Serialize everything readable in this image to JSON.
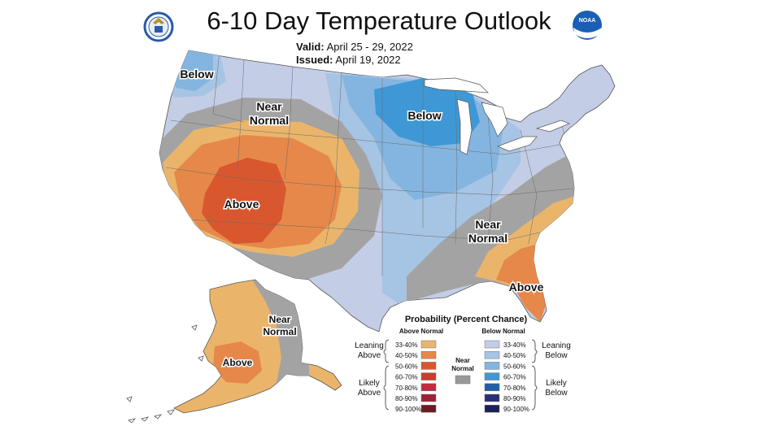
{
  "title": "6-10 Day Temperature Outlook",
  "valid": {
    "label": "Valid:",
    "value": "April 25 - 29, 2022"
  },
  "issued": {
    "label": "Issued:",
    "value": "April 19, 2022"
  },
  "logos": {
    "left": "doc-seal",
    "right": "noaa-logo",
    "right_text": "NOAA"
  },
  "map_labels": {
    "pnw_below": "Below",
    "west_near_1": "Near",
    "west_near_2": "Normal",
    "sw_above": "Above",
    "midwest_below": "Below",
    "se_near_1": "Near",
    "se_near_2": "Normal",
    "fl_above": "Above",
    "ak_near_1": "Near",
    "ak_near_2": "Normal",
    "ak_above": "Above"
  },
  "legend": {
    "title": "Probability (Percent Chance)",
    "above_header": "Above Normal",
    "below_header": "Below Normal",
    "near_1": "Near",
    "near_2": "Normal",
    "near_color": "#999999",
    "leaning_above_1": "Leaning",
    "leaning_above_2": "Above",
    "likely_above_1": "Likely",
    "likely_above_2": "Above",
    "leaning_below_1": "Leaning",
    "leaning_below_2": "Below",
    "likely_below_1": "Likely",
    "likely_below_2": "Below",
    "ranges": [
      "33-40%",
      "40-50%",
      "50-60%",
      "60-70%",
      "70-80%",
      "80-90%",
      "90-100%"
    ],
    "above_colors": [
      "#eab56b",
      "#e6884a",
      "#d9572f",
      "#cf3a2a",
      "#c5283f",
      "#9e2236",
      "#6e1a22"
    ],
    "below_colors": [
      "#c3cde6",
      "#a6c4e4",
      "#84b5e0",
      "#3e98d6",
      "#1f5fa8",
      "#2a2f7a",
      "#1b1f5a"
    ]
  },
  "colors": {
    "near": "#a3a3a3",
    "below_lean": "#c3cde6",
    "below_40": "#a6c4e4",
    "below_50": "#84b5e0",
    "below_60": "#3e98d6",
    "above_33": "#eab56b",
    "above_40": "#e6884a",
    "above_50": "#d9572f",
    "background": "#ffffff"
  }
}
